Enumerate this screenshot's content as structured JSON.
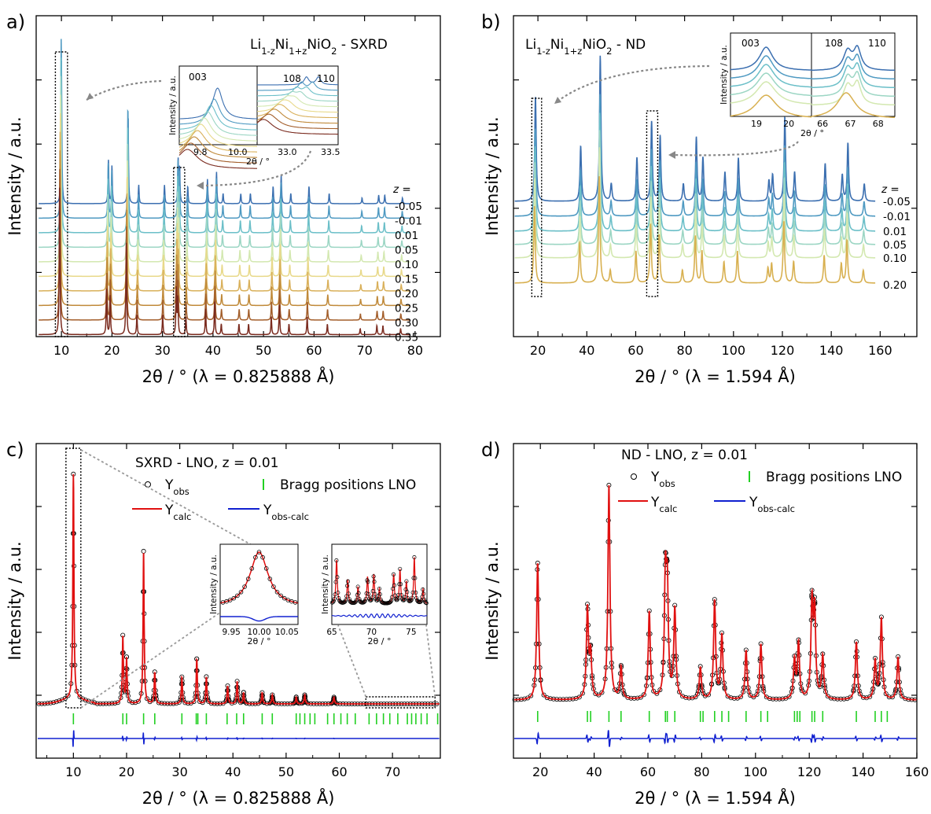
{
  "chart_data": [
    {
      "id": "a",
      "type": "line",
      "panel_label": "a)",
      "title_parts": [
        "Li",
        "1-z",
        "Ni",
        "1+z",
        "NiO",
        "2",
        " - SXRD"
      ],
      "xlabel": "2θ / ° (λ = 0.825888 Å)",
      "ylabel": "Intensity / a.u.",
      "xlim": [
        5,
        85
      ],
      "xticks": [
        10,
        20,
        30,
        40,
        50,
        60,
        70,
        80
      ],
      "legend_title": "z =",
      "series": [
        {
          "name": "-0.05",
          "color": "#3b6fb0"
        },
        {
          "name": "-0.01",
          "color": "#4f9ac2"
        },
        {
          "name": "0.01",
          "color": "#6bbfc8"
        },
        {
          "name": "0.05",
          "color": "#9cd6c4"
        },
        {
          "name": "0.10",
          "color": "#d3e8b0"
        },
        {
          "name": "0.15",
          "color": "#e8d98a"
        },
        {
          "name": "0.20",
          "color": "#d9b05a"
        },
        {
          "name": "0.25",
          "color": "#c08a3a"
        },
        {
          "name": "0.30",
          "color": "#a35e2a"
        },
        {
          "name": "0.35",
          "color": "#7a2a1e"
        }
      ],
      "peaks": [
        {
          "x": 10.0,
          "h": 1.0
        },
        {
          "x": 19.3,
          "h": 0.3
        },
        {
          "x": 20.0,
          "h": 0.26
        },
        {
          "x": 23.2,
          "h": 0.62
        },
        {
          "x": 25.3,
          "h": 0.13
        },
        {
          "x": 30.4,
          "h": 0.13
        },
        {
          "x": 33.1,
          "h": 0.3
        },
        {
          "x": 33.4,
          "h": 0.24
        },
        {
          "x": 35.0,
          "h": 0.12
        },
        {
          "x": 38.9,
          "h": 0.17
        },
        {
          "x": 40.7,
          "h": 0.22
        },
        {
          "x": 42.0,
          "h": 0.07
        },
        {
          "x": 45.5,
          "h": 0.07
        },
        {
          "x": 47.4,
          "h": 0.07
        },
        {
          "x": 51.9,
          "h": 0.12
        },
        {
          "x": 53.5,
          "h": 0.2
        },
        {
          "x": 55.4,
          "h": 0.07
        },
        {
          "x": 59.0,
          "h": 0.12
        },
        {
          "x": 63.0,
          "h": 0.07
        },
        {
          "x": 69.5,
          "h": 0.04
        },
        {
          "x": 72.8,
          "h": 0.06
        },
        {
          "x": 74.0,
          "h": 0.06
        },
        {
          "x": 77.5,
          "h": 0.04
        }
      ],
      "inset": {
        "left_label": "003",
        "right_labels": [
          "108",
          "110"
        ],
        "ylabel": "Intensity / a.u.",
        "xlabel": "2θ / °",
        "left_ticks": [
          "9.8",
          "10.0"
        ],
        "right_ticks": [
          "33.0",
          "33.5"
        ]
      }
    },
    {
      "id": "b",
      "type": "line",
      "panel_label": "b)",
      "title_parts": [
        "Li",
        "1-z",
        "Ni",
        "1+z",
        "NiO",
        "2",
        " - ND"
      ],
      "xlabel": "2θ / ° (λ = 1.594 Å)",
      "ylabel": "Intensity / a.u.",
      "xlim": [
        10,
        175
      ],
      "xticks": [
        20,
        40,
        60,
        80,
        100,
        120,
        140,
        160
      ],
      "legend_title": "z =",
      "series": [
        {
          "name": "-0.05",
          "color": "#3b6fb0"
        },
        {
          "name": "-0.01",
          "color": "#4f9ac2"
        },
        {
          "name": "0.01",
          "color": "#6bbfc8"
        },
        {
          "name": "0.05",
          "color": "#9cd6c4"
        },
        {
          "name": "0.10",
          "color": "#d3e8b0"
        },
        {
          "name": "0.20",
          "color": "#d8b050"
        }
      ],
      "peaks": [
        {
          "x": 19.0,
          "h": 0.72
        },
        {
          "x": 37.5,
          "h": 0.38
        },
        {
          "x": 45.5,
          "h": 1.0
        },
        {
          "x": 50.0,
          "h": 0.12
        },
        {
          "x": 60.5,
          "h": 0.3
        },
        {
          "x": 66.5,
          "h": 0.55
        },
        {
          "x": 70.0,
          "h": 0.45
        },
        {
          "x": 79.5,
          "h": 0.12
        },
        {
          "x": 84.8,
          "h": 0.44
        },
        {
          "x": 87.5,
          "h": 0.3
        },
        {
          "x": 96.5,
          "h": 0.2
        },
        {
          "x": 102.0,
          "h": 0.3
        },
        {
          "x": 114.5,
          "h": 0.14
        },
        {
          "x": 116.0,
          "h": 0.18
        },
        {
          "x": 121.0,
          "h": 0.58
        },
        {
          "x": 125.0,
          "h": 0.2
        },
        {
          "x": 137.5,
          "h": 0.26
        },
        {
          "x": 144.5,
          "h": 0.18
        },
        {
          "x": 146.8,
          "h": 0.4
        },
        {
          "x": 153.5,
          "h": 0.12
        }
      ],
      "inset": {
        "left_label": "003",
        "right_labels": [
          "108",
          "110"
        ],
        "ylabel": "Intensity / a.u.",
        "xlabel": "2θ / °",
        "left_ticks": [
          "19",
          "20"
        ],
        "right_ticks": [
          "66",
          "67",
          "68"
        ]
      }
    },
    {
      "id": "c",
      "type": "line",
      "panel_label": "c)",
      "title": "SXRD - LNO, z = 0.01",
      "legend": {
        "obs": [
          "Y",
          "obs"
        ],
        "bragg": "Bragg positions LNO",
        "calc": [
          "Y",
          "calc"
        ],
        "diff": [
          "Y",
          "obs-calc"
        ]
      },
      "xlabel": "2θ / ° (λ = 0.825888 Å)",
      "ylabel": "Intensity / a.u.",
      "xlim": [
        3,
        79
      ],
      "xticks": [
        10,
        20,
        30,
        40,
        50,
        60,
        70
      ],
      "colors": {
        "calc": "#e01010",
        "diff": "#1020d0",
        "bragg": "#22d022",
        "obs": "#000000"
      },
      "peaks": [
        {
          "x": 10.0,
          "h": 1.0
        },
        {
          "x": 19.3,
          "h": 0.3
        },
        {
          "x": 20.0,
          "h": 0.2
        },
        {
          "x": 23.2,
          "h": 0.68
        },
        {
          "x": 25.3,
          "h": 0.14
        },
        {
          "x": 30.4,
          "h": 0.12
        },
        {
          "x": 33.2,
          "h": 0.2
        },
        {
          "x": 35.0,
          "h": 0.12
        },
        {
          "x": 39.0,
          "h": 0.08
        },
        {
          "x": 40.8,
          "h": 0.1
        },
        {
          "x": 42.0,
          "h": 0.05
        },
        {
          "x": 45.5,
          "h": 0.05
        },
        {
          "x": 47.4,
          "h": 0.04
        },
        {
          "x": 51.9,
          "h": 0.03
        },
        {
          "x": 53.5,
          "h": 0.04
        },
        {
          "x": 59.0,
          "h": 0.03
        }
      ],
      "bragg_positions": [
        10.0,
        19.3,
        20.0,
        23.2,
        25.3,
        30.4,
        33.1,
        33.4,
        35.0,
        38.9,
        40.7,
        42.0,
        45.5,
        47.4,
        51.9,
        52.6,
        53.5,
        54.5,
        55.4,
        57.8,
        59.0,
        60.3,
        61.5,
        63.0,
        65.6,
        67.0,
        68.3,
        69.5,
        71.0,
        72.8,
        73.6,
        74.4,
        75.4,
        76.5,
        78.5
      ],
      "inset1": {
        "ylabel": "Intensity / a.u.",
        "xlabel": "2θ / °",
        "ticks": [
          "9.95",
          "10.00",
          "10.05"
        ]
      },
      "inset2": {
        "ylabel": "Intensity / a.u.",
        "xlabel": "2θ / °",
        "ticks": [
          "65",
          "70",
          "75"
        ]
      }
    },
    {
      "id": "d",
      "type": "line",
      "panel_label": "d)",
      "title": "ND - LNO, z = 0.01",
      "legend": {
        "obs": [
          "Y",
          "obs"
        ],
        "bragg": "Bragg positions LNO",
        "calc": [
          "Y",
          "calc"
        ],
        "diff": [
          "Y",
          "obs-calc"
        ]
      },
      "xlabel": "2θ / ° (λ = 1.594 Å)",
      "ylabel": "Intensity / a.u.",
      "xlim": [
        10,
        160
      ],
      "xticks": [
        20,
        40,
        60,
        80,
        100,
        120,
        140,
        160
      ],
      "colors": {
        "calc": "#e01010",
        "diff": "#1020d0",
        "bragg": "#22d022",
        "obs": "#000000"
      },
      "peaks": [
        {
          "x": 19.0,
          "h": 0.64
        },
        {
          "x": 37.5,
          "h": 0.42
        },
        {
          "x": 38.7,
          "h": 0.2
        },
        {
          "x": 45.5,
          "h": 1.0
        },
        {
          "x": 50.0,
          "h": 0.15
        },
        {
          "x": 60.5,
          "h": 0.41
        },
        {
          "x": 66.5,
          "h": 0.54
        },
        {
          "x": 67.2,
          "h": 0.48
        },
        {
          "x": 70.0,
          "h": 0.42
        },
        {
          "x": 79.5,
          "h": 0.15
        },
        {
          "x": 84.8,
          "h": 0.46
        },
        {
          "x": 87.5,
          "h": 0.3
        },
        {
          "x": 96.5,
          "h": 0.23
        },
        {
          "x": 102.0,
          "h": 0.26
        },
        {
          "x": 114.5,
          "h": 0.18
        },
        {
          "x": 116.0,
          "h": 0.26
        },
        {
          "x": 121.0,
          "h": 0.44
        },
        {
          "x": 122.0,
          "h": 0.4
        },
        {
          "x": 125.0,
          "h": 0.2
        },
        {
          "x": 137.5,
          "h": 0.27
        },
        {
          "x": 144.5,
          "h": 0.18
        },
        {
          "x": 146.8,
          "h": 0.38
        },
        {
          "x": 153.0,
          "h": 0.2
        }
      ],
      "bragg_positions": [
        19.0,
        37.5,
        38.7,
        45.5,
        50.0,
        60.5,
        66.5,
        67.2,
        70.0,
        79.5,
        80.5,
        84.8,
        87.5,
        90.0,
        96.5,
        102.0,
        104.5,
        114.5,
        115.5,
        116.5,
        121.0,
        122.0,
        125.0,
        137.5,
        144.5,
        146.8,
        149.0
      ]
    }
  ]
}
